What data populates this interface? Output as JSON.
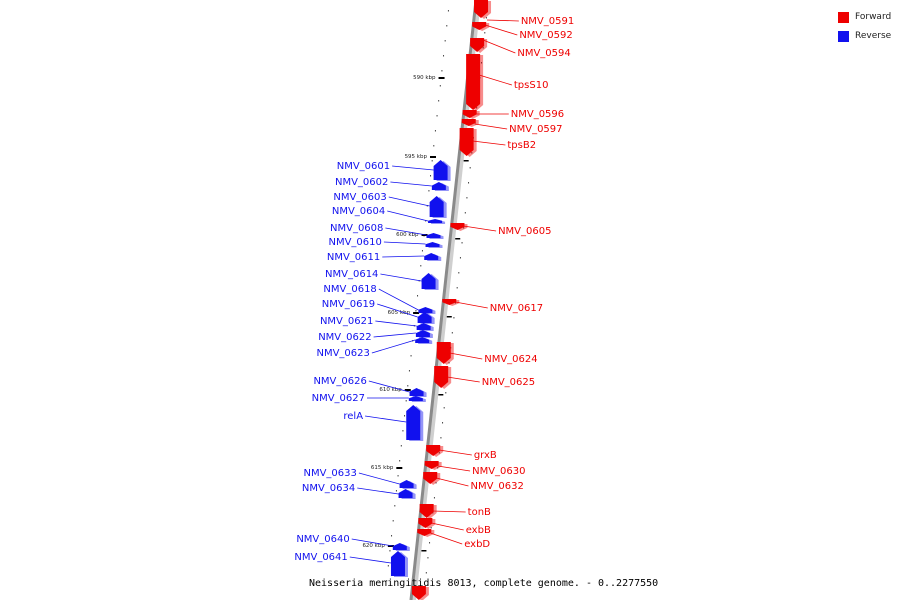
{
  "caption": "Neisseria meningitidis 8013, complete genome. - 0..2277550",
  "legend": [
    {
      "label": "Forward",
      "color": "#ee0000"
    },
    {
      "label": "Reverse",
      "color": "#1111ee"
    }
  ],
  "strand_colors": {
    "forward": "#ee0000",
    "reverse": "#1111ee",
    "backbone": "#999999"
  },
  "scale_ticks": [
    "590 kbp",
    "595 kbp",
    "600 kbp",
    "605 kbp",
    "610 kbp",
    "615 kbp",
    "620 kbp"
  ],
  "forward_genes": [
    "NMV_0591",
    "NMV_0592",
    "NMV_0594",
    "tpsS10",
    "NMV_0596",
    "NMV_0597",
    "tpsB2",
    "NMV_0605",
    "NMV_0617",
    "NMV_0624",
    "NMV_0625",
    "grxB",
    "NMV_0630",
    "NMV_0632",
    "tonB",
    "exbB",
    "exbD"
  ],
  "reverse_genes": [
    "NMV_0601",
    "NMV_0602",
    "NMV_0603",
    "NMV_0604",
    "NMV_0608",
    "NMV_0610",
    "NMV_0611",
    "NMV_0614",
    "NMV_0618",
    "NMV_0619",
    "NMV_0621",
    "NMV_0622",
    "NMV_0623",
    "NMV_0626",
    "NMV_0627",
    "relA",
    "NMV_0633",
    "NMV_0634",
    "NMV_0640",
    "NMV_0641"
  ]
}
